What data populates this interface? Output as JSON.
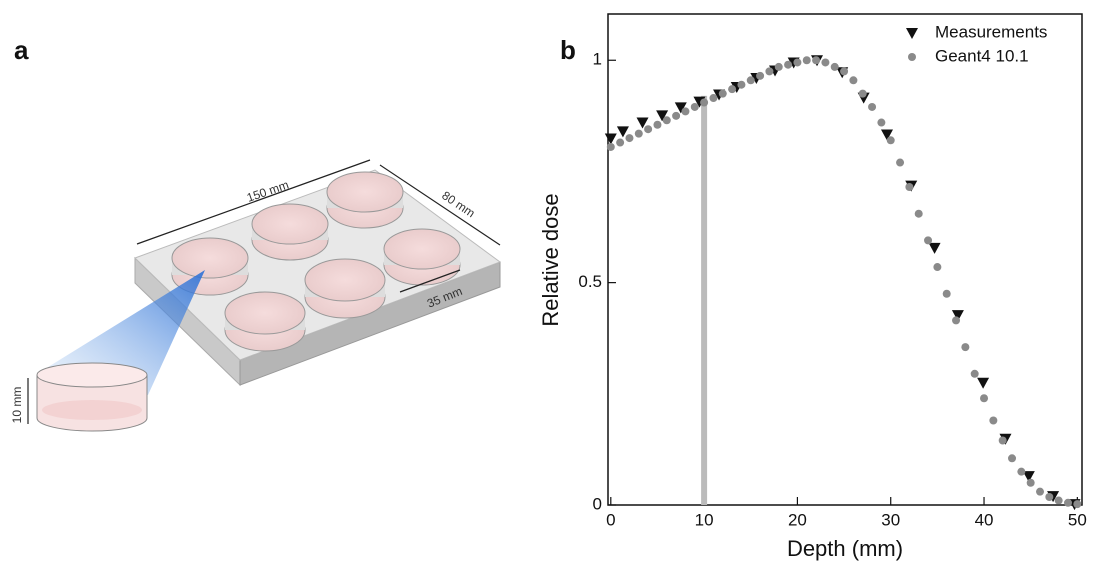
{
  "panel_a": {
    "label": "a",
    "dimensions": [
      "150 mm",
      "80 mm",
      "35 mm",
      "10 mm"
    ]
  },
  "chart_data": {
    "type": "scatter",
    "panel_label": "b",
    "xlabel": "Depth (mm)",
    "ylabel": "Relative dose",
    "xlim": [
      -0.3,
      50.5
    ],
    "ylim": [
      0,
      1.104
    ],
    "xticks": [
      0,
      10,
      20,
      30,
      40,
      50
    ],
    "yticks": [
      0,
      0.5,
      1
    ],
    "legend": "upper right",
    "reference_line": {
      "x": 10,
      "ymax": 0.92,
      "color": "#bbbbbb"
    },
    "series": [
      {
        "name": "Measurements",
        "color": "#111111",
        "marker": "triangle",
        "x": [
          0,
          1.3,
          3.4,
          5.5,
          7.5,
          9.5,
          11.6,
          13.5,
          15.6,
          17.6,
          19.6,
          22.1,
          24.8,
          27.1,
          29.6,
          32.2,
          34.7,
          37.2,
          39.9,
          42.3,
          44.8,
          47.4,
          49.7
        ],
        "values": [
          0.824,
          0.84,
          0.86,
          0.876,
          0.894,
          0.907,
          0.923,
          0.94,
          0.96,
          0.977,
          0.995,
          1.0,
          0.973,
          0.916,
          0.833,
          0.718,
          0.578,
          0.427,
          0.275,
          0.149,
          0.065,
          0.02,
          0.002
        ]
      },
      {
        "name": "Geant4 10.1",
        "color": "#8a8a8a",
        "marker": "circle",
        "x": [
          0,
          1,
          2,
          3,
          4,
          5,
          6,
          7,
          8,
          9,
          10,
          11,
          12,
          13,
          14,
          15,
          16,
          17,
          18,
          19,
          20,
          21,
          22,
          23,
          24,
          25,
          26,
          27,
          28,
          29,
          30,
          31,
          32,
          33,
          34,
          35,
          36,
          37,
          38,
          39,
          40,
          41,
          42,
          43,
          44,
          45,
          46,
          47,
          48,
          49,
          50
        ],
        "values": [
          0.805,
          0.815,
          0.825,
          0.835,
          0.845,
          0.855,
          0.865,
          0.875,
          0.885,
          0.895,
          0.905,
          0.915,
          0.925,
          0.935,
          0.945,
          0.955,
          0.965,
          0.975,
          0.985,
          0.99,
          0.995,
          1.0,
          1.0,
          0.995,
          0.985,
          0.975,
          0.955,
          0.925,
          0.895,
          0.86,
          0.82,
          0.77,
          0.715,
          0.655,
          0.595,
          0.535,
          0.475,
          0.415,
          0.355,
          0.295,
          0.24,
          0.19,
          0.145,
          0.105,
          0.075,
          0.05,
          0.03,
          0.018,
          0.01,
          0.005,
          0.002
        ]
      }
    ]
  }
}
